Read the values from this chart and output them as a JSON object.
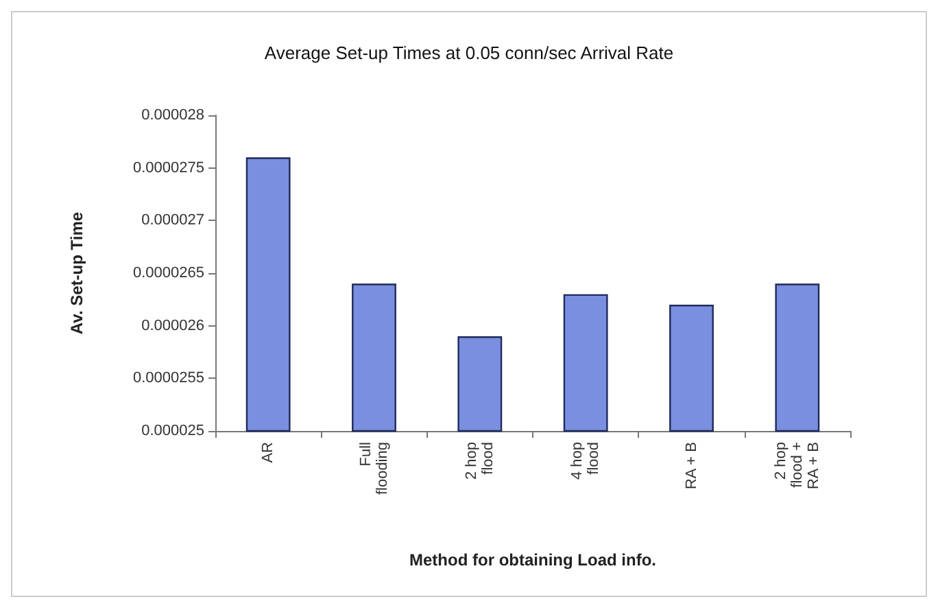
{
  "chart_data": {
    "type": "bar",
    "title": "Average Set-up Times at 0.05 conn/sec Arrival Rate",
    "xlabel": "Method for obtaining Load info.",
    "ylabel": "Av. Set-up Time",
    "categories": [
      "AR",
      "Full\nflooding",
      "2 hop\nflood",
      "4 hop\nflood",
      "RA + B",
      "2 hop\nflood +\nRA + B"
    ],
    "values": [
      2.76e-05,
      2.64e-05,
      2.59e-05,
      2.63e-05,
      2.62e-05,
      2.64e-05
    ],
    "color": "#7b8fe0",
    "ylim": [
      2.5e-05,
      2.8e-05
    ],
    "yticks": [
      {
        "value": 2.5e-05,
        "label": "0.000025"
      },
      {
        "value": 2.55e-05,
        "label": "0.0000255"
      },
      {
        "value": 2.6e-05,
        "label": "0.000026"
      },
      {
        "value": 2.65e-05,
        "label": "0.0000265"
      },
      {
        "value": 2.7e-05,
        "label": "0.000027"
      },
      {
        "value": 2.75e-05,
        "label": "0.0000275"
      },
      {
        "value": 2.8e-05,
        "label": "0.000028"
      }
    ],
    "grid": false
  }
}
